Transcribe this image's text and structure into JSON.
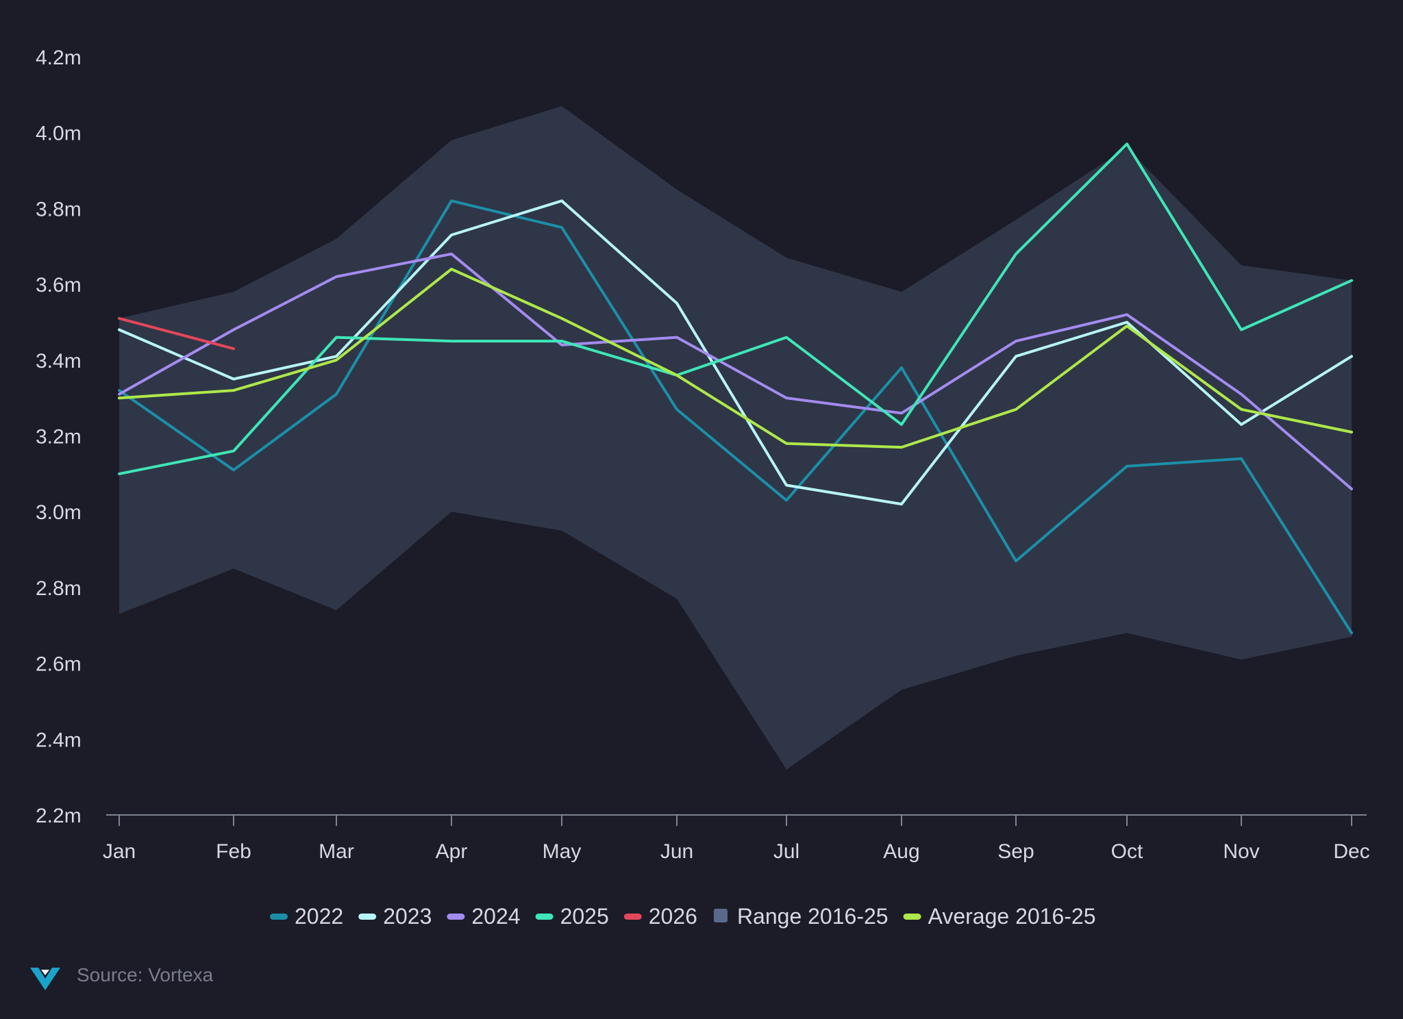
{
  "chart_data": {
    "type": "line",
    "title": "",
    "xlabel": "",
    "ylabel": "",
    "categories": [
      "Jan",
      "Feb",
      "Mar",
      "Apr",
      "May",
      "Jun",
      "Jul",
      "Aug",
      "Sep",
      "Oct",
      "Nov",
      "Dec"
    ],
    "ylim": [
      2.2,
      4.2
    ],
    "yticks": [
      2.2,
      2.4,
      2.6,
      2.8,
      3.0,
      3.2,
      3.4,
      3.6,
      3.8,
      4.0,
      4.2
    ],
    "ytick_labels": [
      "2.2m",
      "2.4m",
      "2.6m",
      "2.8m",
      "3.0m",
      "3.2m",
      "3.4m",
      "3.6m",
      "3.8m",
      "4.0m",
      "4.2m"
    ],
    "grid": false,
    "range": {
      "name": "Range 2016-25",
      "color": "#5a6a8a",
      "fill_color": "#2f3647",
      "high": [
        3.51,
        3.58,
        3.72,
        3.98,
        4.07,
        3.85,
        3.67,
        3.58,
        3.77,
        3.96,
        3.65,
        3.61
      ],
      "low": [
        2.73,
        2.85,
        2.74,
        3.0,
        2.95,
        2.77,
        2.32,
        2.53,
        2.62,
        2.68,
        2.61,
        2.67
      ]
    },
    "series": [
      {
        "name": "2022",
        "color": "#1b8fa8",
        "values": [
          3.32,
          3.11,
          3.31,
          3.82,
          3.75,
          3.27,
          3.03,
          3.38,
          2.87,
          3.12,
          3.14,
          2.68
        ]
      },
      {
        "name": "2023",
        "color": "#b7f4f7",
        "values": [
          3.48,
          3.35,
          3.41,
          3.73,
          3.82,
          3.55,
          3.07,
          3.02,
          3.41,
          3.5,
          3.23,
          3.41
        ]
      },
      {
        "name": "2024",
        "color": "#a48bf0",
        "values": [
          3.31,
          3.48,
          3.62,
          3.68,
          3.44,
          3.46,
          3.3,
          3.26,
          3.45,
          3.52,
          3.31,
          3.06
        ]
      },
      {
        "name": "2025",
        "color": "#3ee6b7",
        "values": [
          3.1,
          3.16,
          3.46,
          3.45,
          3.45,
          3.36,
          3.46,
          3.23,
          3.68,
          3.97,
          3.48,
          3.61
        ]
      },
      {
        "name": "2026",
        "color": "#e2475a",
        "values": [
          3.51,
          3.43,
          null,
          null,
          null,
          null,
          null,
          null,
          null,
          null,
          null,
          null
        ]
      },
      {
        "name": "Average 2016-25",
        "color": "#aee84a",
        "values": [
          3.3,
          3.32,
          3.4,
          3.64,
          3.51,
          3.36,
          3.18,
          3.17,
          3.27,
          3.49,
          3.27,
          3.21
        ]
      }
    ],
    "legend": [
      {
        "label": "2022",
        "color": "#1b8fa8",
        "shape": "line"
      },
      {
        "label": "2023",
        "color": "#b7f4f7",
        "shape": "line"
      },
      {
        "label": "2024",
        "color": "#a48bf0",
        "shape": "line"
      },
      {
        "label": "2025",
        "color": "#3ee6b7",
        "shape": "line"
      },
      {
        "label": "2026",
        "color": "#e2475a",
        "shape": "line"
      },
      {
        "label": "Range 2016-25",
        "color": "#5a6a8a",
        "shape": "square"
      },
      {
        "label": "Average 2016-25",
        "color": "#aee84a",
        "shape": "line"
      }
    ],
    "legend_position": "bottom-center"
  },
  "footer": {
    "source": "Source: Vortexa",
    "logo_icon": "vortexa-logo-icon",
    "logo_color": "#1aa3c9"
  }
}
